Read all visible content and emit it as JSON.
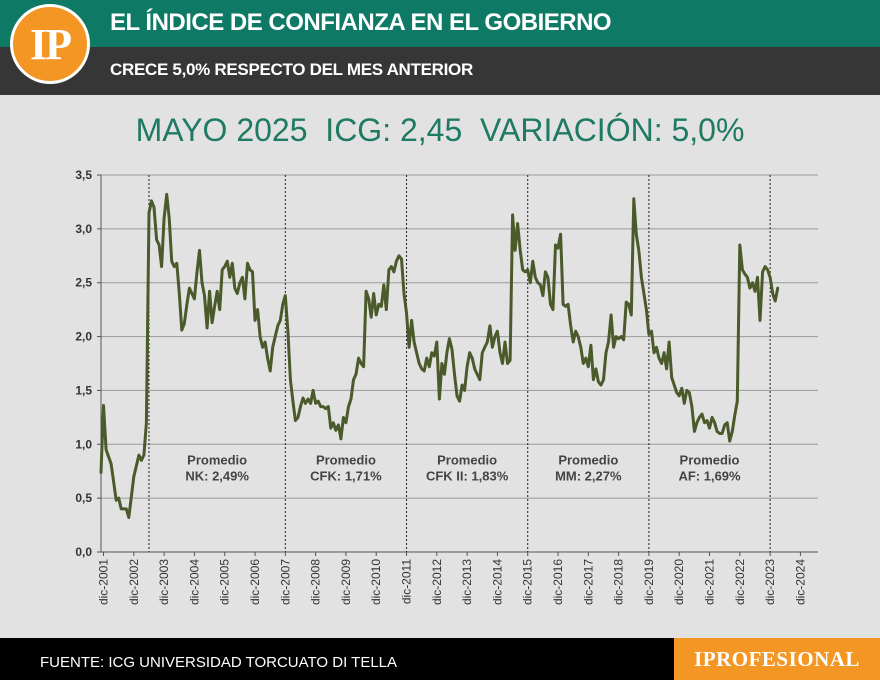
{
  "header": {
    "logo_text": "IP",
    "title": "EL ÍNDICE DE CONFIANZA EN EL GOBIERNO",
    "subtitle": "CRECE 5,0% RESPECTO DEL MES ANTERIOR"
  },
  "headline": "MAYO 2025  ICG: 2,45  VARIACIÓN: 5,0%",
  "footer": {
    "source": "FUENTE: ICG UNIVERSIDAD TORCUATO DI TELLA",
    "brand": "IPROFESIONAL"
  },
  "colors": {
    "header_green": "#0e7a65",
    "header_dark": "#363636",
    "accent_orange": "#f39623",
    "line": "#4a5a2a",
    "headline_green": "#1e7a63"
  },
  "chart_data": {
    "type": "line",
    "xlabel": "",
    "ylabel": "",
    "ylim": [
      0,
      3.5
    ],
    "grid": true,
    "y_ticks": [
      "0,0",
      "0,5",
      "1,0",
      "1,5",
      "2,0",
      "2,5",
      "3,0",
      "3,5"
    ],
    "x_tick_labels": [
      "dic-2001",
      "dic-2002",
      "dic-2003",
      "dic-2004",
      "dic-2005",
      "dic-2006",
      "dic-2007",
      "dic-2008",
      "dic-2009",
      "dic-2010",
      "dic-2011",
      "dic-2012",
      "dic-2013",
      "dic-2014",
      "dic-2015",
      "dic-2016",
      "dic-2017",
      "dic-2018",
      "dic-2019",
      "dic-2020",
      "dic-2021",
      "dic-2022",
      "dic-2023",
      "dic-2024"
    ],
    "period_dividers": [
      "jun-2003",
      "dic-2007",
      "dic-2011",
      "dic-2015",
      "dic-2019",
      "dic-2023"
    ],
    "annotations": [
      {
        "label": "Promedio",
        "value": "NK: 2,49%"
      },
      {
        "label": "Promedio",
        "value": "CFK: 1,71%"
      },
      {
        "label": "Promedio",
        "value": "CFK II: 1,83%"
      },
      {
        "label": "Promedio",
        "value": "MM: 2,27%"
      },
      {
        "label": "Promedio",
        "value": "AF: 1,69%"
      }
    ],
    "series": [
      {
        "values": [
          [
            "2001-11",
            0.74
          ],
          [
            "2001-12",
            1.36
          ],
          [
            "2002-01",
            0.95
          ],
          [
            "2002-03",
            0.82
          ],
          [
            "2002-05",
            0.48
          ],
          [
            "2002-06",
            0.5
          ],
          [
            "2002-07",
            0.4
          ],
          [
            "2002-09",
            0.4
          ],
          [
            "2002-10",
            0.32
          ],
          [
            "2002-12",
            0.7
          ],
          [
            "2003-02",
            0.9
          ],
          [
            "2003-03",
            0.85
          ],
          [
            "2003-04",
            0.9
          ],
          [
            "2003-05",
            1.2
          ],
          [
            "2003-06",
            3.15
          ],
          [
            "2003-07",
            3.26
          ],
          [
            "2003-08",
            3.2
          ],
          [
            "2003-09",
            2.9
          ],
          [
            "2003-10",
            2.85
          ],
          [
            "2003-11",
            2.65
          ],
          [
            "2003-12",
            3.1
          ],
          [
            "2004-01",
            3.32
          ],
          [
            "2004-02",
            3.1
          ],
          [
            "2004-03",
            2.7
          ],
          [
            "2004-04",
            2.65
          ],
          [
            "2004-05",
            2.68
          ],
          [
            "2004-06",
            2.4
          ],
          [
            "2004-07",
            2.06
          ],
          [
            "2004-08",
            2.12
          ],
          [
            "2004-09",
            2.3
          ],
          [
            "2004-10",
            2.45
          ],
          [
            "2004-11",
            2.4
          ],
          [
            "2004-12",
            2.35
          ],
          [
            "2005-01",
            2.6
          ],
          [
            "2005-02",
            2.8
          ],
          [
            "2005-03",
            2.5
          ],
          [
            "2005-04",
            2.38
          ],
          [
            "2005-05",
            2.08
          ],
          [
            "2005-06",
            2.42
          ],
          [
            "2005-07",
            2.13
          ],
          [
            "2005-08",
            2.28
          ],
          [
            "2005-09",
            2.42
          ],
          [
            "2005-10",
            2.25
          ],
          [
            "2005-11",
            2.62
          ],
          [
            "2005-12",
            2.65
          ],
          [
            "2006-01",
            2.7
          ],
          [
            "2006-02",
            2.55
          ],
          [
            "2006-03",
            2.68
          ],
          [
            "2006-04",
            2.45
          ],
          [
            "2006-05",
            2.4
          ],
          [
            "2006-06",
            2.5
          ],
          [
            "2006-07",
            2.55
          ],
          [
            "2006-08",
            2.35
          ],
          [
            "2006-09",
            2.68
          ],
          [
            "2006-10",
            2.62
          ],
          [
            "2006-11",
            2.6
          ],
          [
            "2006-12",
            2.15
          ],
          [
            "2007-01",
            2.25
          ],
          [
            "2007-02",
            2.0
          ],
          [
            "2007-03",
            1.9
          ],
          [
            "2007-04",
            1.95
          ],
          [
            "2007-05",
            1.8
          ],
          [
            "2007-06",
            1.68
          ],
          [
            "2007-07",
            1.9
          ],
          [
            "2007-08",
            2.0
          ],
          [
            "2007-09",
            2.1
          ],
          [
            "2007-10",
            2.15
          ],
          [
            "2007-11",
            2.3
          ],
          [
            "2007-12",
            2.38
          ],
          [
            "2008-01",
            2.05
          ],
          [
            "2008-02",
            1.6
          ],
          [
            "2008-03",
            1.4
          ],
          [
            "2008-04",
            1.22
          ],
          [
            "2008-05",
            1.25
          ],
          [
            "2008-06",
            1.35
          ],
          [
            "2008-07",
            1.43
          ],
          [
            "2008-08",
            1.38
          ],
          [
            "2008-09",
            1.42
          ],
          [
            "2008-10",
            1.38
          ],
          [
            "2008-11",
            1.5
          ],
          [
            "2008-12",
            1.38
          ],
          [
            "2009-01",
            1.4
          ],
          [
            "2009-02",
            1.35
          ],
          [
            "2009-03",
            1.35
          ],
          [
            "2009-04",
            1.33
          ],
          [
            "2009-05",
            1.35
          ],
          [
            "2009-06",
            1.15
          ],
          [
            "2009-07",
            1.2
          ],
          [
            "2009-08",
            1.13
          ],
          [
            "2009-09",
            1.18
          ],
          [
            "2009-10",
            1.05
          ],
          [
            "2009-11",
            1.25
          ],
          [
            "2009-12",
            1.2
          ],
          [
            "2010-01",
            1.35
          ],
          [
            "2010-02",
            1.42
          ],
          [
            "2010-03",
            1.6
          ],
          [
            "2010-04",
            1.65
          ],
          [
            "2010-05",
            1.8
          ],
          [
            "2010-06",
            1.75
          ],
          [
            "2010-07",
            1.72
          ],
          [
            "2010-08",
            2.42
          ],
          [
            "2010-09",
            2.35
          ],
          [
            "2010-10",
            2.18
          ],
          [
            "2010-11",
            2.4
          ],
          [
            "2010-12",
            2.2
          ],
          [
            "2011-01",
            2.3
          ],
          [
            "2011-02",
            2.28
          ],
          [
            "2011-03",
            2.48
          ],
          [
            "2011-04",
            2.25
          ],
          [
            "2011-05",
            2.62
          ],
          [
            "2011-06",
            2.65
          ],
          [
            "2011-07",
            2.6
          ],
          [
            "2011-08",
            2.7
          ],
          [
            "2011-09",
            2.75
          ],
          [
            "2011-10",
            2.72
          ],
          [
            "2011-11",
            2.4
          ],
          [
            "2011-12",
            2.22
          ],
          [
            "2012-01",
            1.9
          ],
          [
            "2012-02",
            2.15
          ],
          [
            "2012-03",
            1.95
          ],
          [
            "2012-04",
            1.85
          ],
          [
            "2012-05",
            1.75
          ],
          [
            "2012-06",
            1.7
          ],
          [
            "2012-07",
            1.68
          ],
          [
            "2012-08",
            1.8
          ],
          [
            "2012-09",
            1.72
          ],
          [
            "2012-10",
            1.85
          ],
          [
            "2012-11",
            1.82
          ],
          [
            "2012-12",
            1.95
          ],
          [
            "2013-01",
            1.42
          ],
          [
            "2013-02",
            1.75
          ],
          [
            "2013-03",
            1.65
          ],
          [
            "2013-04",
            1.85
          ],
          [
            "2013-05",
            1.98
          ],
          [
            "2013-06",
            1.88
          ],
          [
            "2013-07",
            1.65
          ],
          [
            "2013-08",
            1.45
          ],
          [
            "2013-09",
            1.4
          ],
          [
            "2013-10",
            1.55
          ],
          [
            "2013-11",
            1.5
          ],
          [
            "2013-12",
            1.72
          ],
          [
            "2014-01",
            1.85
          ],
          [
            "2014-02",
            1.8
          ],
          [
            "2014-03",
            1.7
          ],
          [
            "2014-04",
            1.65
          ],
          [
            "2014-05",
            1.6
          ],
          [
            "2014-06",
            1.85
          ],
          [
            "2014-07",
            1.9
          ],
          [
            "2014-08",
            1.95
          ],
          [
            "2014-09",
            2.1
          ],
          [
            "2014-10",
            1.9
          ],
          [
            "2014-11",
            2.0
          ],
          [
            "2014-12",
            2.05
          ],
          [
            "2015-01",
            1.85
          ],
          [
            "2015-02",
            1.75
          ],
          [
            "2015-03",
            1.95
          ],
          [
            "2015-04",
            1.75
          ],
          [
            "2015-05",
            1.78
          ],
          [
            "2015-06",
            3.13
          ],
          [
            "2015-07",
            2.8
          ],
          [
            "2015-08",
            3.05
          ],
          [
            "2015-09",
            2.8
          ],
          [
            "2015-10",
            2.62
          ],
          [
            "2015-11",
            2.6
          ],
          [
            "2015-12",
            2.62
          ],
          [
            "2016-01",
            2.5
          ],
          [
            "2016-02",
            2.7
          ],
          [
            "2016-03",
            2.55
          ],
          [
            "2016-04",
            2.5
          ],
          [
            "2016-05",
            2.48
          ],
          [
            "2016-06",
            2.38
          ],
          [
            "2016-07",
            2.6
          ],
          [
            "2016-08",
            2.55
          ],
          [
            "2016-09",
            2.3
          ],
          [
            "2016-10",
            2.25
          ],
          [
            "2016-11",
            2.85
          ],
          [
            "2016-12",
            2.82
          ],
          [
            "2017-01",
            2.95
          ],
          [
            "2017-02",
            2.3
          ],
          [
            "2017-03",
            2.28
          ],
          [
            "2017-04",
            2.3
          ],
          [
            "2017-05",
            2.1
          ],
          [
            "2017-06",
            1.95
          ],
          [
            "2017-07",
            2.05
          ],
          [
            "2017-08",
            2.0
          ],
          [
            "2017-09",
            1.9
          ],
          [
            "2017-10",
            1.75
          ],
          [
            "2017-11",
            1.8
          ],
          [
            "2017-12",
            1.72
          ],
          [
            "2018-01",
            1.92
          ],
          [
            "2018-02",
            1.6
          ],
          [
            "2018-03",
            1.7
          ],
          [
            "2018-04",
            1.58
          ],
          [
            "2018-05",
            1.55
          ],
          [
            "2018-06",
            1.6
          ],
          [
            "2018-07",
            1.85
          ],
          [
            "2018-08",
            1.95
          ],
          [
            "2018-09",
            2.2
          ],
          [
            "2018-10",
            1.9
          ],
          [
            "2018-11",
            2.0
          ],
          [
            "2018-12",
            1.98
          ],
          [
            "2019-01",
            2.0
          ],
          [
            "2019-02",
            1.97
          ],
          [
            "2019-03",
            2.32
          ],
          [
            "2019-04",
            2.3
          ],
          [
            "2019-05",
            2.2
          ],
          [
            "2019-06",
            3.28
          ],
          [
            "2019-07",
            2.95
          ],
          [
            "2019-08",
            2.8
          ],
          [
            "2019-09",
            2.55
          ],
          [
            "2019-10",
            2.4
          ],
          [
            "2019-11",
            2.25
          ],
          [
            "2019-12",
            2.02
          ],
          [
            "2020-01",
            2.05
          ],
          [
            "2020-02",
            1.85
          ],
          [
            "2020-03",
            1.9
          ],
          [
            "2020-04",
            1.8
          ],
          [
            "2020-05",
            1.75
          ],
          [
            "2020-06",
            1.85
          ],
          [
            "2020-07",
            1.7
          ],
          [
            "2020-08",
            1.95
          ],
          [
            "2020-09",
            1.62
          ],
          [
            "2020-10",
            1.55
          ],
          [
            "2020-11",
            1.48
          ],
          [
            "2020-12",
            1.45
          ],
          [
            "2021-01",
            1.52
          ],
          [
            "2021-02",
            1.38
          ],
          [
            "2021-03",
            1.5
          ],
          [
            "2021-04",
            1.48
          ],
          [
            "2021-05",
            1.35
          ],
          [
            "2021-06",
            1.12
          ],
          [
            "2021-07",
            1.2
          ],
          [
            "2021-08",
            1.25
          ],
          [
            "2021-09",
            1.28
          ],
          [
            "2021-10",
            1.2
          ],
          [
            "2021-11",
            1.22
          ],
          [
            "2021-12",
            1.15
          ],
          [
            "2022-01",
            1.25
          ],
          [
            "2022-02",
            1.2
          ],
          [
            "2022-03",
            1.12
          ],
          [
            "2022-04",
            1.1
          ],
          [
            "2022-05",
            1.1
          ],
          [
            "2022-06",
            1.18
          ],
          [
            "2022-07",
            1.2
          ],
          [
            "2022-08",
            1.03
          ],
          [
            "2022-09",
            1.12
          ],
          [
            "2022-10",
            1.27
          ],
          [
            "2022-11",
            1.4
          ],
          [
            "2022-12",
            2.85
          ],
          [
            "2023-01",
            2.62
          ],
          [
            "2023-02",
            2.58
          ],
          [
            "2023-03",
            2.55
          ],
          [
            "2023-04",
            2.45
          ],
          [
            "2023-05",
            2.5
          ],
          [
            "2023-06",
            2.42
          ],
          [
            "2023-07",
            2.55
          ],
          [
            "2023-08",
            2.15
          ],
          [
            "2023-09",
            2.6
          ],
          [
            "2023-10",
            2.65
          ],
          [
            "2023-11",
            2.62
          ],
          [
            "2023-12",
            2.55
          ],
          [
            "2024-01",
            2.4
          ],
          [
            "2024-02",
            2.33
          ],
          [
            "2024-03",
            2.45
          ]
        ]
      }
    ]
  }
}
